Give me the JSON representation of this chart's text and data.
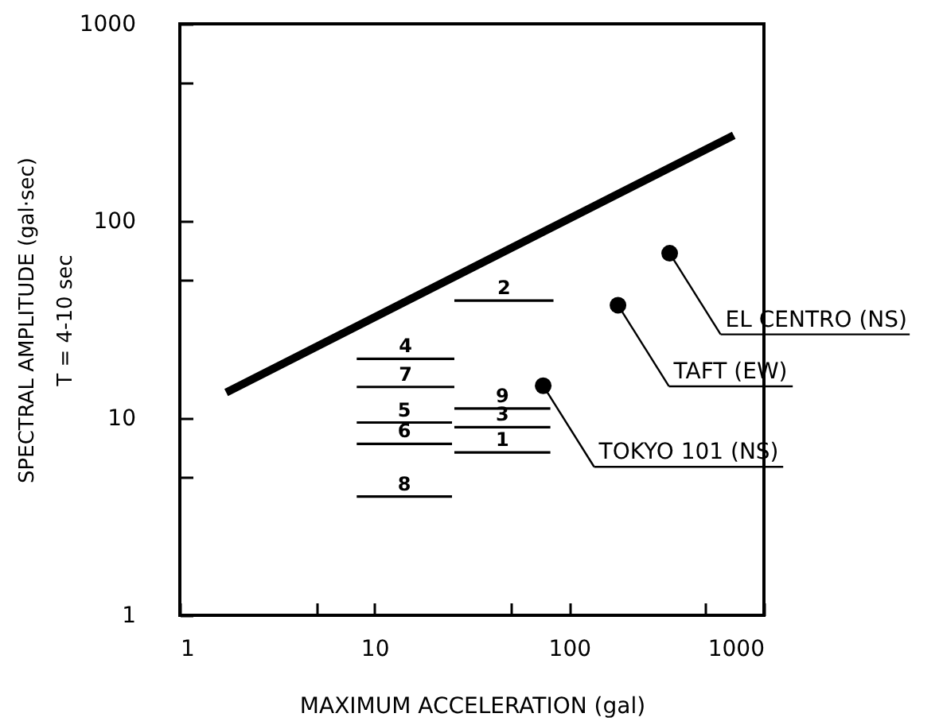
{
  "chart_data": {
    "type": "line",
    "xlabel": "MAXIMUM ACCELERATION (gal)",
    "ylabel": "SPECTRAL AMPLITUDE (gal·sec)\nT = 4-10 sec",
    "log": "xy",
    "xlim": [
      1,
      1000
    ],
    "ylim": [
      1,
      1000
    ],
    "xticks": [
      1,
      {
        "value": 5,
        "label": null
      },
      10,
      {
        "value": 50,
        "label": null
      },
      100,
      {
        "value": 500,
        "label": null
      },
      1000
    ],
    "yticks": [
      1,
      {
        "value": 5,
        "label": null
      },
      10,
      {
        "value": 50,
        "label": null
      },
      100,
      {
        "value": 500,
        "label": null
      },
      1000
    ],
    "grid": false,
    "series": [
      {
        "color": "#000000",
        "x": [
          1.73,
          700
        ],
        "values": [
          13.5,
          272
        ]
      },
      {
        "name": "1",
        "color": "#000000",
        "x": [
          25.7,
          80
        ],
        "values": [
          6.7,
          6.7
        ]
      },
      {
        "name": "2",
        "color": "#000000",
        "x": [
          25.7,
          83
        ],
        "values": [
          39.5,
          39.5
        ]
      },
      {
        "name": "3",
        "color": "#000000",
        "x": [
          25.7,
          80
        ],
        "values": [
          9.0,
          9.0
        ]
      },
      {
        "name": "4",
        "color": "#000000",
        "x": [
          8.1,
          25.7
        ],
        "values": [
          20,
          20
        ]
      },
      {
        "name": "5",
        "color": "#000000",
        "x": [
          8.1,
          25
        ],
        "values": [
          9.5,
          9.5
        ]
      },
      {
        "name": "6",
        "color": "#000000",
        "x": [
          8.1,
          25
        ],
        "values": [
          7.4,
          7.4
        ]
      },
      {
        "name": "7",
        "color": "#000000",
        "x": [
          8.1,
          25.7
        ],
        "values": [
          14.4,
          14.4
        ]
      },
      {
        "name": "8",
        "color": "#000000",
        "x": [
          8.1,
          25
        ],
        "values": [
          4.0,
          4.0
        ]
      },
      {
        "name": "9",
        "color": "#000000",
        "x": [
          25.7,
          80
        ],
        "values": [
          11.2,
          11.2
        ]
      },
      {
        "type": "scatter",
        "marker": "circle",
        "color": "#000000",
        "x": [
          73.5,
          178,
          328
        ],
        "values": [
          14.6,
          37.4,
          68.6
        ]
      }
    ],
    "annotations": [
      {
        "text": "TOKYO 101 (NS)",
        "x": 73.5,
        "y": 14.6
      },
      {
        "text": "TAFT (EW)",
        "x": 178,
        "y": 37.4
      },
      {
        "text": "EL CENTRO (NS)",
        "x": 328,
        "y": 68.6
      }
    ]
  }
}
